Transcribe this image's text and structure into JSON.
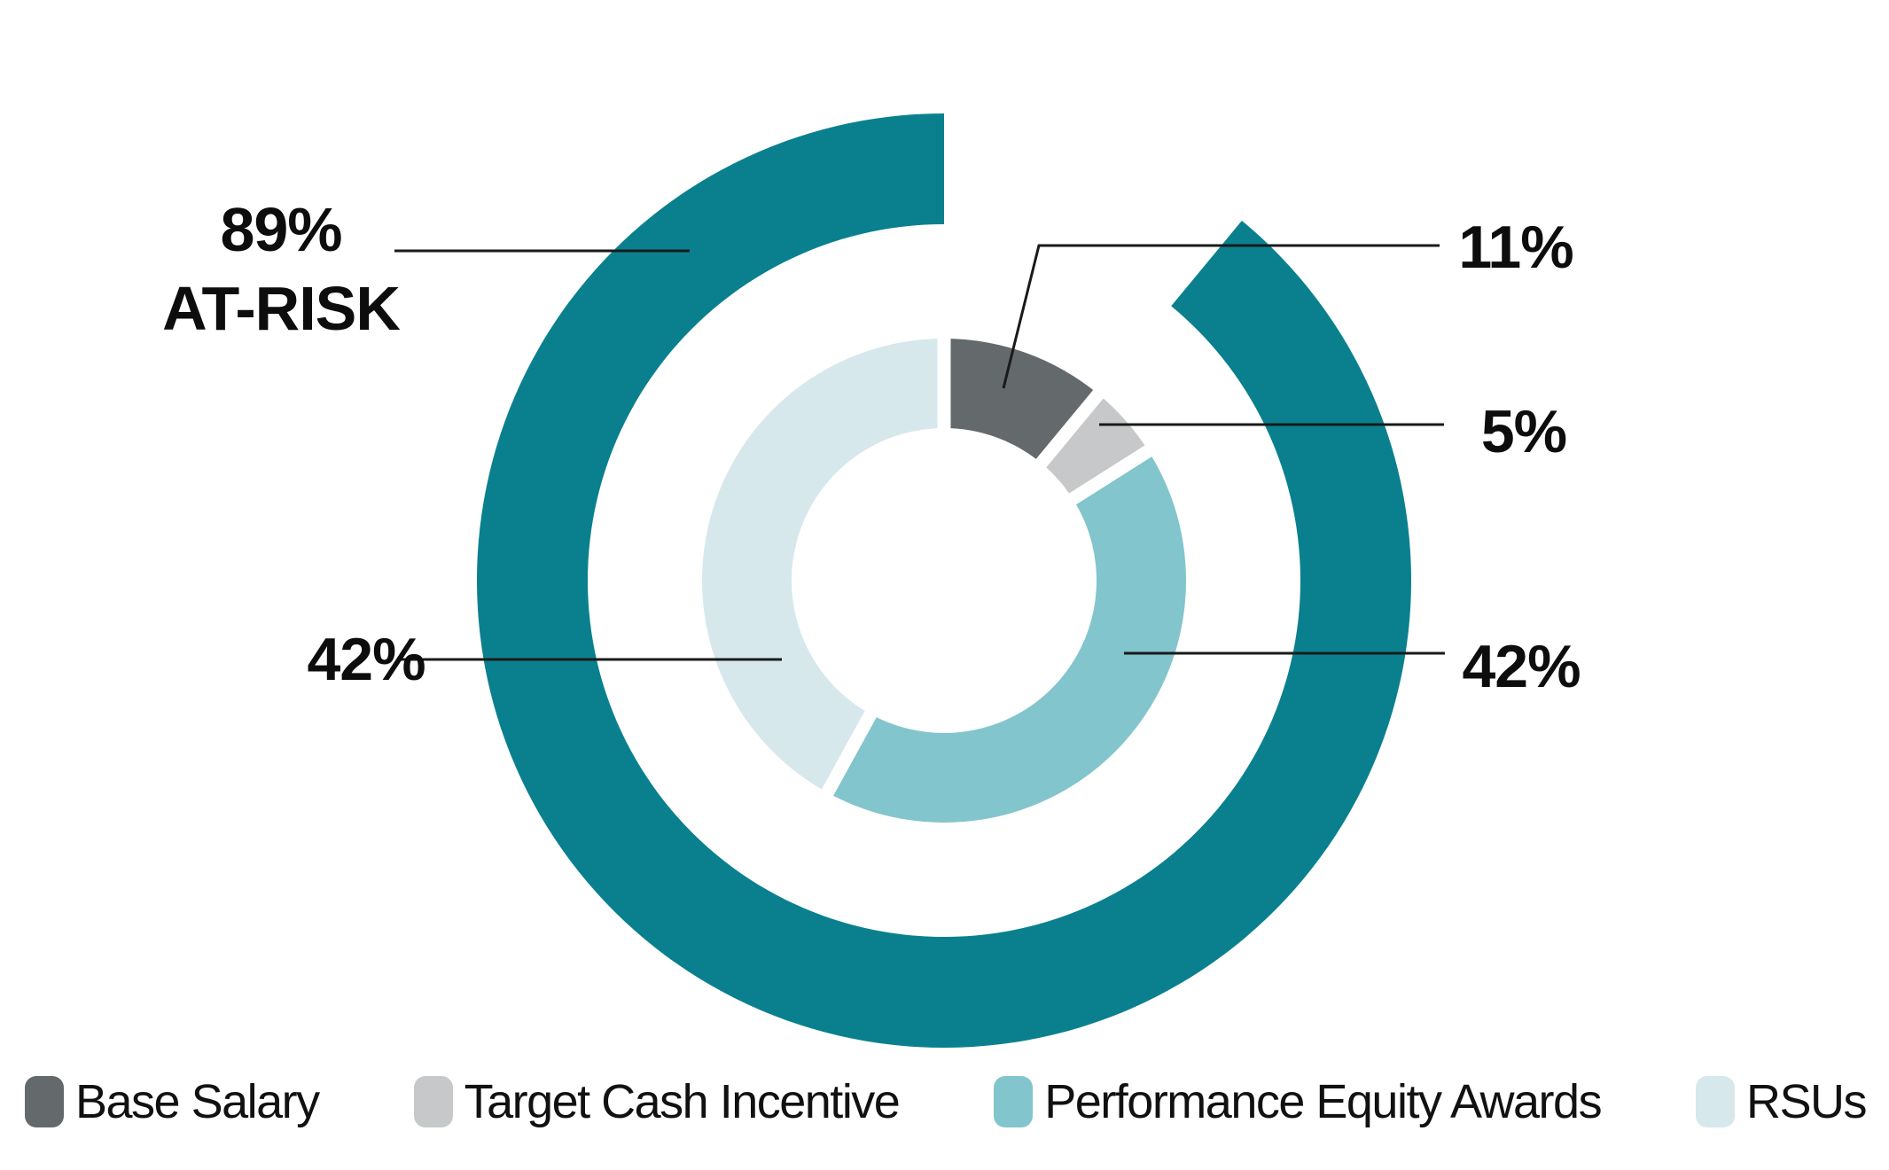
{
  "chart_data": {
    "type": "pie",
    "subtype": "double-donut",
    "units": "%",
    "direction": "clockwise",
    "start_angle_deg": 0,
    "legend_position": "bottom",
    "series": [
      {
        "name": "Base Salary",
        "value": 11,
        "display": "11%",
        "color": "#64696C",
        "at_risk": false
      },
      {
        "name": "Target Cash Incentive",
        "value": 5,
        "display": "5%",
        "color": "#C6C8C9",
        "at_risk": true
      },
      {
        "name": "Performance Equity Awards",
        "value": 42,
        "display": "42%",
        "color": "#82C5CC",
        "at_risk": true
      },
      {
        "name": "RSUs",
        "value": 42,
        "display": "42%",
        "color": "#D6E8EC",
        "at_risk": true
      }
    ],
    "outer_ring": {
      "label": "89% AT-RISK",
      "value": 89,
      "gap_value": 11,
      "color": "#0A808E"
    },
    "colors": {
      "outer_ring_teal": "#0A808E",
      "leader_line": "#1a1a1a",
      "text": "#0d0d0d",
      "background": "#ffffff"
    }
  },
  "labels": {
    "at_risk_pct": "89%",
    "at_risk_text": "AT-RISK",
    "base_salary_pct": "11%",
    "target_cash_pct": "5%",
    "performance_equity_pct": "42%",
    "rsus_pct": "42%"
  },
  "legend": {
    "items": [
      {
        "label": "Base Salary"
      },
      {
        "label": "Target Cash Incentive"
      },
      {
        "label": "Performance Equity Awards"
      },
      {
        "label": "RSUs"
      }
    ]
  }
}
